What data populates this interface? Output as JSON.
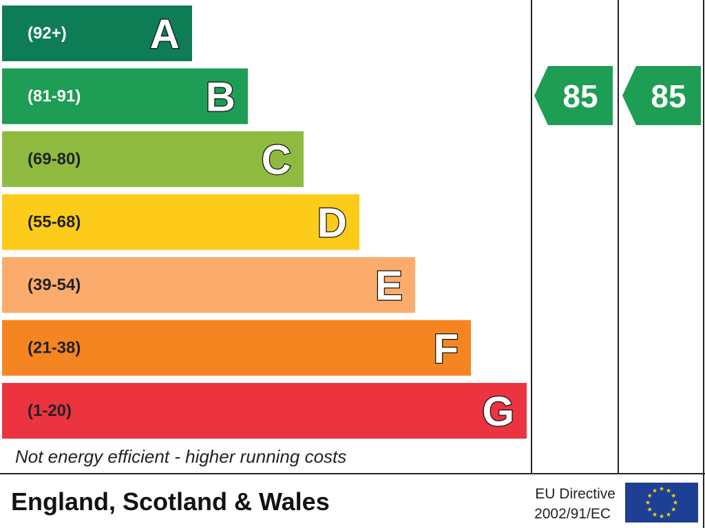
{
  "chart_data": {
    "type": "bar",
    "categories": [
      "A",
      "B",
      "C",
      "D",
      "E",
      "F",
      "G"
    ],
    "bands": [
      {
        "letter": "A",
        "range": "(92+)",
        "min": 92,
        "max": 100,
        "color": "#0e7d55"
      },
      {
        "letter": "B",
        "range": "(81-91)",
        "min": 81,
        "max": 91,
        "color": "#1e9d54"
      },
      {
        "letter": "C",
        "range": "(69-80)",
        "min": 69,
        "max": 80,
        "color": "#8ebb3f"
      },
      {
        "letter": "D",
        "range": "(55-68)",
        "min": 55,
        "max": 68,
        "color": "#fdcb1a"
      },
      {
        "letter": "E",
        "range": "(39-54)",
        "min": 39,
        "max": 54,
        "color": "#fbac6d"
      },
      {
        "letter": "F",
        "range": "(21-38)",
        "min": 21,
        "max": 38,
        "color": "#f58521"
      },
      {
        "letter": "G",
        "range": "(1-20)",
        "min": 1,
        "max": 20,
        "color": "#ec3340"
      }
    ],
    "ratings": [
      {
        "value": 85,
        "band": "B",
        "color": "#1e9d54"
      },
      {
        "value": 85,
        "band": "B",
        "color": "#1e9d54"
      }
    ],
    "footnote": "Not energy efficient - higher running costs",
    "region": "England, Scotland & Wales",
    "directive": [
      "EU Directive",
      "2002/91/EC"
    ],
    "flag": {
      "background": "#1d3f94",
      "stars": "#f6d10e",
      "star_count": 12
    }
  }
}
